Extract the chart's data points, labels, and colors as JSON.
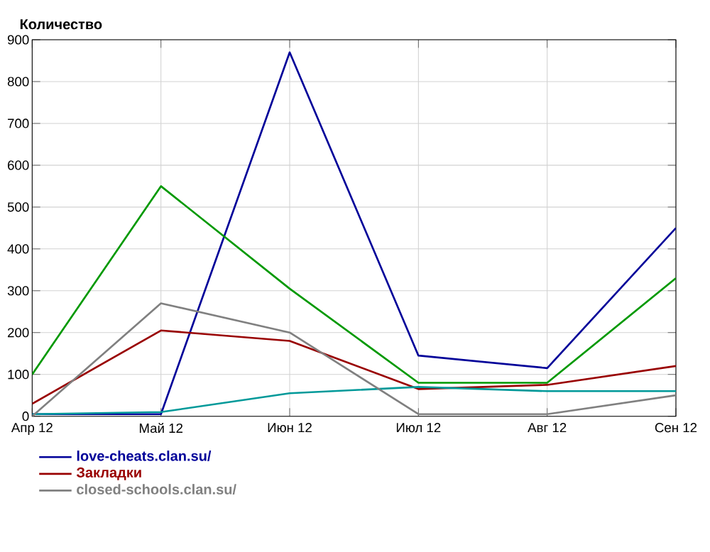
{
  "chart_data": {
    "type": "line",
    "ylabel": "Количество",
    "categories": [
      "Апр 12",
      "Май 12",
      "Июн 12",
      "Июл 12",
      "Авг 12",
      "Сен 12"
    ],
    "series": [
      {
        "name": "love-cheats.clan.su/",
        "color": "#000099",
        "values": [
          5,
          5,
          870,
          145,
          115,
          450
        ]
      },
      {
        "color": "#009900",
        "values": [
          100,
          550,
          305,
          80,
          80,
          330
        ]
      },
      {
        "name": "Закладки",
        "color": "#990000",
        "values": [
          30,
          205,
          180,
          65,
          75,
          120
        ]
      },
      {
        "color": "#009999",
        "values": [
          5,
          10,
          55,
          70,
          60,
          60
        ]
      },
      {
        "name": "closed-schools.clan.su/",
        "color": "#808080",
        "values": [
          0,
          270,
          200,
          5,
          5,
          50
        ]
      }
    ],
    "ylim": [
      0,
      900
    ],
    "yticks": [
      0,
      100,
      200,
      300,
      400,
      500,
      600,
      700,
      800,
      900
    ],
    "grid": true,
    "legend": "bottom",
    "marker": "none",
    "line_style": "solid"
  }
}
